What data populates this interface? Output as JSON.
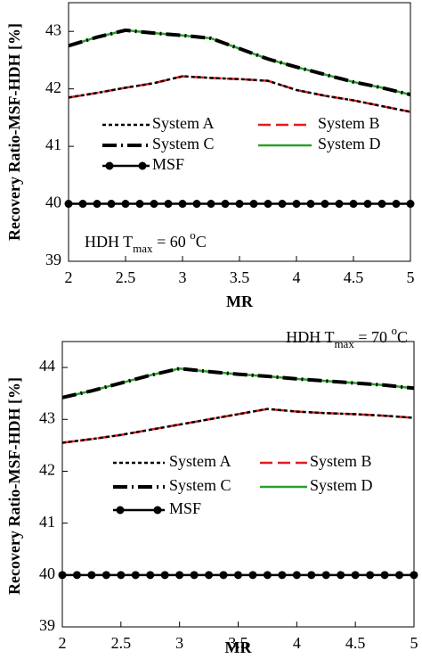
{
  "chart_data": [
    {
      "type": "line",
      "xlabel": "MR",
      "ylabel": "Recovery Ratio-MSF-HDH [%]",
      "annotation": {
        "text": "HDH T",
        "sub": "max",
        "mid": " = 60 ",
        "sup": "o",
        "end": "C"
      },
      "xlim": [
        2,
        5
      ],
      "xticks": [
        2,
        2.5,
        3,
        3.5,
        4,
        4.5,
        5
      ],
      "ylim": [
        39,
        43.5
      ],
      "yticks": [
        39,
        40,
        41,
        42,
        43
      ],
      "series": [
        {
          "name": "System B",
          "color": "#e41a1c",
          "dash": "14,6",
          "x": [
            2,
            2.25,
            2.5,
            2.75,
            3,
            3.25,
            3.5,
            3.75,
            4,
            4.25,
            4.5,
            4.75,
            5
          ],
          "values": [
            41.85,
            41.93,
            42.02,
            42.1,
            42.22,
            42.19,
            42.17,
            42.14,
            41.98,
            41.88,
            41.8,
            41.7,
            41.6
          ]
        },
        {
          "name": "System A",
          "color": "#000000",
          "dash": "4,3",
          "x": [
            2,
            2.25,
            2.5,
            2.75,
            3,
            3.25,
            3.5,
            3.75,
            4,
            4.25,
            4.5,
            4.75,
            5
          ],
          "values": [
            41.85,
            41.93,
            42.02,
            42.1,
            42.22,
            42.19,
            42.17,
            42.14,
            41.98,
            41.88,
            41.8,
            41.7,
            41.6
          ]
        },
        {
          "name": "System D",
          "color": "#2ca02c",
          "dash": "none",
          "x": [
            2,
            2.25,
            2.5,
            2.75,
            3,
            3.25,
            3.5,
            3.75,
            4,
            4.25,
            4.5,
            4.75,
            5
          ],
          "values": [
            42.75,
            42.9,
            43.02,
            42.97,
            42.93,
            42.88,
            42.7,
            42.52,
            42.38,
            42.25,
            42.12,
            42.02,
            41.9
          ]
        },
        {
          "name": "System C",
          "color": "#000000",
          "dash": "16,5,2,5",
          "x": [
            2,
            2.25,
            2.5,
            2.75,
            3,
            3.25,
            3.5,
            3.75,
            4,
            4.25,
            4.5,
            4.75,
            5
          ],
          "values": [
            42.75,
            42.9,
            43.02,
            42.97,
            42.93,
            42.88,
            42.7,
            42.52,
            42.38,
            42.25,
            42.12,
            42.02,
            41.9
          ]
        },
        {
          "name": "MSF",
          "color": "#000000",
          "dash": "none",
          "marker": "circle",
          "x": [
            2,
            2.125,
            2.25,
            2.375,
            2.5,
            2.625,
            2.75,
            2.875,
            3,
            3.125,
            3.25,
            3.375,
            3.5,
            3.625,
            3.75,
            3.875,
            4,
            4.125,
            4.25,
            4.375,
            4.5,
            4.625,
            4.75,
            4.875,
            5
          ],
          "values": [
            40,
            40,
            40,
            40,
            40,
            40,
            40,
            40,
            40,
            40,
            40,
            40,
            40,
            40,
            40,
            40,
            40,
            40,
            40,
            40,
            40,
            40,
            40,
            40,
            40
          ]
        }
      ]
    },
    {
      "type": "line",
      "xlabel": "MR",
      "ylabel": "Recovery Ratio-MSF-HDH [%]",
      "annotation": {
        "text": "HDH T",
        "sub": "max",
        "mid": " = 70 ",
        "sup": "o",
        "end": "C"
      },
      "xlim": [
        2,
        5
      ],
      "xticks": [
        2,
        2.5,
        3,
        3.5,
        4,
        4.5,
        5
      ],
      "ylim": [
        39,
        44.5
      ],
      "yticks": [
        39,
        40,
        41,
        42,
        43,
        44
      ],
      "series": [
        {
          "name": "System B",
          "color": "#e41a1c",
          "dash": "14,6",
          "x": [
            2,
            2.25,
            2.5,
            2.75,
            3,
            3.25,
            3.5,
            3.75,
            4,
            4.25,
            4.5,
            4.75,
            5
          ],
          "values": [
            42.55,
            42.62,
            42.7,
            42.8,
            42.9,
            43.0,
            43.1,
            43.2,
            43.15,
            43.12,
            43.1,
            43.07,
            43.03
          ]
        },
        {
          "name": "System A",
          "color": "#000000",
          "dash": "4,3",
          "x": [
            2,
            2.25,
            2.5,
            2.75,
            3,
            3.25,
            3.5,
            3.75,
            4,
            4.25,
            4.5,
            4.75,
            5
          ],
          "values": [
            42.55,
            42.62,
            42.7,
            42.8,
            42.9,
            43.0,
            43.1,
            43.2,
            43.15,
            43.12,
            43.1,
            43.07,
            43.03
          ]
        },
        {
          "name": "System D",
          "color": "#2ca02c",
          "dash": "none",
          "x": [
            2,
            2.25,
            2.5,
            2.75,
            3,
            3.25,
            3.5,
            3.75,
            4,
            4.25,
            4.5,
            4.75,
            5
          ],
          "values": [
            43.42,
            43.55,
            43.7,
            43.85,
            43.98,
            43.92,
            43.87,
            43.83,
            43.78,
            43.74,
            43.7,
            43.66,
            43.6
          ]
        },
        {
          "name": "System C",
          "color": "#000000",
          "dash": "16,5,2,5",
          "x": [
            2,
            2.25,
            2.5,
            2.75,
            3,
            3.25,
            3.5,
            3.75,
            4,
            4.25,
            4.5,
            4.75,
            5
          ],
          "values": [
            43.42,
            43.55,
            43.7,
            43.85,
            43.98,
            43.92,
            43.87,
            43.83,
            43.78,
            43.74,
            43.7,
            43.66,
            43.6
          ]
        },
        {
          "name": "MSF",
          "color": "#000000",
          "dash": "none",
          "marker": "circle",
          "x": [
            2,
            2.125,
            2.25,
            2.375,
            2.5,
            2.625,
            2.75,
            2.875,
            3,
            3.125,
            3.25,
            3.375,
            3.5,
            3.625,
            3.75,
            3.875,
            4,
            4.125,
            4.25,
            4.375,
            4.5,
            4.625,
            4.75,
            4.875,
            5
          ],
          "values": [
            40,
            40,
            40,
            40,
            40,
            40,
            40,
            40,
            40,
            40,
            40,
            40,
            40,
            40,
            40,
            40,
            40,
            40,
            40,
            40,
            40,
            40,
            40,
            40,
            40
          ]
        }
      ]
    }
  ]
}
